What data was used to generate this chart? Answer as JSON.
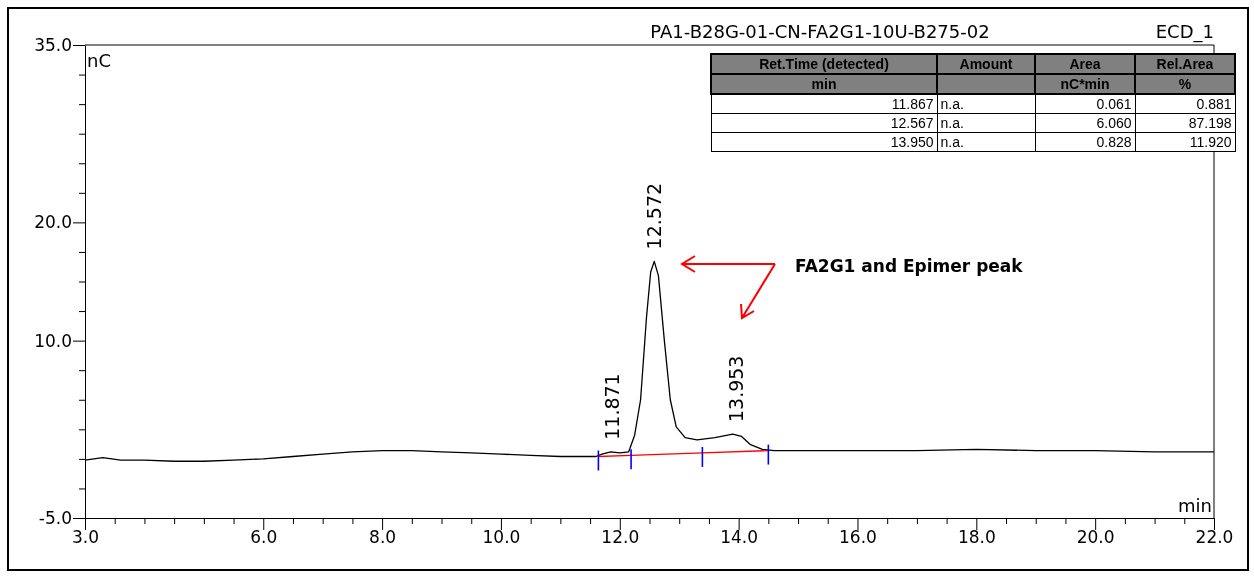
{
  "chart_data": [
    {
      "type": "line",
      "title": "PA1-B28G-01-CN-FA2G1-10U-B275-02",
      "subtitle": "ECD_1",
      "xlabel": "min",
      "ylabel": "nC",
      "xlim": [
        3,
        22
      ],
      "ylim": [
        -5,
        35
      ],
      "xticks": [
        {
          "value": 3,
          "label": "3.0"
        },
        {
          "value": 3.5,
          "label": null
        },
        {
          "value": 4,
          "label": null
        },
        {
          "value": 4.5,
          "label": null
        },
        {
          "value": 5,
          "label": null
        },
        {
          "value": 5.5,
          "label": null
        },
        {
          "value": 6,
          "label": "6.0"
        },
        {
          "value": 6.5,
          "label": null
        },
        {
          "value": 7,
          "label": null
        },
        {
          "value": 7.5,
          "label": null
        },
        {
          "value": 8,
          "label": "8.0"
        },
        {
          "value": 8.5,
          "label": null
        },
        {
          "value": 9,
          "label": null
        },
        {
          "value": 9.5,
          "label": null
        },
        {
          "value": 10,
          "label": "10.0"
        },
        {
          "value": 10.5,
          "label": null
        },
        {
          "value": 11,
          "label": null
        },
        {
          "value": 11.5,
          "label": null
        },
        {
          "value": 12,
          "label": "12.0"
        },
        {
          "value": 12.5,
          "label": null
        },
        {
          "value": 13,
          "label": null
        },
        {
          "value": 13.5,
          "label": null
        },
        {
          "value": 14,
          "label": "14.0"
        },
        {
          "value": 14.5,
          "label": null
        },
        {
          "value": 15,
          "label": null
        },
        {
          "value": 15.5,
          "label": null
        },
        {
          "value": 16,
          "label": "16.0"
        },
        {
          "value": 16.5,
          "label": null
        },
        {
          "value": 17,
          "label": null
        },
        {
          "value": 17.5,
          "label": null
        },
        {
          "value": 18,
          "label": "18.0"
        },
        {
          "value": 18.5,
          "label": null
        },
        {
          "value": 19,
          "label": null
        },
        {
          "value": 19.5,
          "label": null
        },
        {
          "value": 20,
          "label": "20.0"
        },
        {
          "value": 20.5,
          "label": null
        },
        {
          "value": 21,
          "label": null
        },
        {
          "value": 21.5,
          "label": null
        },
        {
          "value": 22,
          "label": "22.0"
        }
      ],
      "yticks": [
        {
          "value": -5,
          "label": "-5.0"
        },
        {
          "value": -2.5,
          "label": null
        },
        {
          "value": 0,
          "label": null
        },
        {
          "value": 2.5,
          "label": null
        },
        {
          "value": 5,
          "label": null
        },
        {
          "value": 7.5,
          "label": null
        },
        {
          "value": 10,
          "label": "10.0"
        },
        {
          "value": 12.5,
          "label": null
        },
        {
          "value": 15,
          "label": null
        },
        {
          "value": 17.5,
          "label": null
        },
        {
          "value": 20,
          "label": "20.0"
        },
        {
          "value": 22.5,
          "label": null
        },
        {
          "value": 25,
          "label": null
        },
        {
          "value": 27.5,
          "label": null
        },
        {
          "value": 30,
          "label": null
        },
        {
          "value": 32.5,
          "label": null
        },
        {
          "value": 35,
          "label": "35.0"
        }
      ],
      "grid": false,
      "series": [
        {
          "color": "#000000",
          "x": [
            3,
            3.3,
            3.6,
            4,
            4.5,
            5,
            5.5,
            6,
            6.5,
            7,
            7.5,
            8,
            8.5,
            9,
            9.5,
            10,
            10.5,
            11,
            11.3,
            11.6,
            11.7,
            11.85,
            12.0,
            12.15,
            12.25,
            12.35,
            12.45,
            12.52,
            12.58,
            12.65,
            12.75,
            12.85,
            12.95,
            13.1,
            13.3,
            13.6,
            13.9,
            14.05,
            14.2,
            14.4,
            14.6,
            15,
            16,
            17,
            18,
            19,
            20,
            21,
            22
          ],
          "values": [
            -0.1,
            0.1,
            -0.1,
            -0.1,
            -0.2,
            -0.2,
            -0.1,
            0,
            0.2,
            0.4,
            0.6,
            0.7,
            0.7,
            0.6,
            0.5,
            0.4,
            0.3,
            0.2,
            0.2,
            0.2,
            0.4,
            0.6,
            0.5,
            0.6,
            2,
            5,
            12,
            15.8,
            16.7,
            15.5,
            10,
            5,
            2.7,
            1.8,
            1.6,
            1.8,
            2.1,
            1.9,
            1.2,
            0.8,
            0.7,
            0.7,
            0.7,
            0.7,
            0.8,
            0.7,
            0.7,
            0.6,
            0.6
          ]
        },
        {
          "color": "#ff0000",
          "x": [
            11.64,
            12.19,
            13.39,
            14.5
          ],
          "values": [
            0.2,
            0.3,
            0.5,
            0.7
          ]
        }
      ],
      "annotations": [
        {
          "text": "11.871",
          "x": 11.871,
          "y": 0.6
        },
        {
          "text": "12.572",
          "x": 12.572,
          "y": 16.7
        },
        {
          "text": "13.953",
          "x": 13.953,
          "y": 2.1
        },
        "FA2G1 and Epimer peak"
      ]
    },
    {
      "type": "other",
      "categories": [
        "Ret.Time (detected)",
        "Amount",
        "Area",
        "Rel.Area"
      ],
      "cell_labels": [
        [
          "min",
          null,
          "nC*min",
          "%"
        ],
        [
          "11.867",
          "n.a.",
          "0.061",
          "0.881"
        ],
        [
          "12.567",
          "n.a.",
          "6.060",
          "87.198"
        ],
        [
          "13.950",
          "n.a.",
          "0.828",
          "11.920"
        ]
      ]
    }
  ]
}
